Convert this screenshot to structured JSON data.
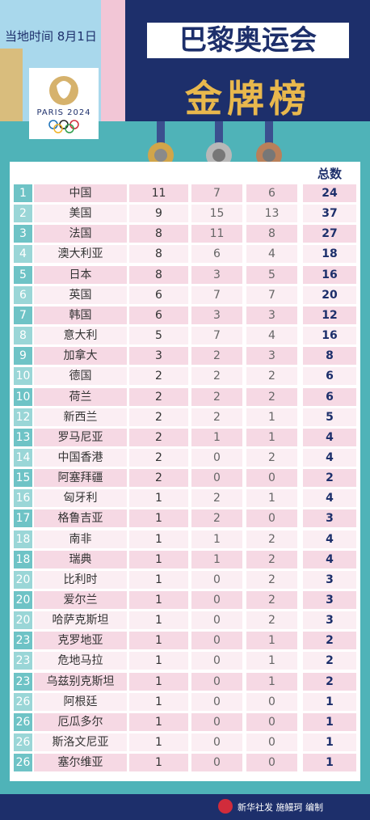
{
  "header": {
    "date": "当地时间 8月1日",
    "title": "巴黎奥运会",
    "subtitle": "金牌榜",
    "logo_text": "PARIS 2024"
  },
  "table": {
    "total_header": "总数",
    "rows": [
      [
        1,
        "中国",
        11,
        7,
        6,
        24
      ],
      [
        2,
        "美国",
        9,
        15,
        13,
        37
      ],
      [
        3,
        "法国",
        8,
        11,
        8,
        27
      ],
      [
        4,
        "澳大利亚",
        8,
        6,
        4,
        18
      ],
      [
        5,
        "日本",
        8,
        3,
        5,
        16
      ],
      [
        6,
        "英国",
        6,
        7,
        7,
        20
      ],
      [
        7,
        "韩国",
        6,
        3,
        3,
        12
      ],
      [
        8,
        "意大利",
        5,
        7,
        4,
        16
      ],
      [
        9,
        "加拿大",
        3,
        2,
        3,
        8
      ],
      [
        10,
        "德国",
        2,
        2,
        2,
        6
      ],
      [
        10,
        "荷兰",
        2,
        2,
        2,
        6
      ],
      [
        12,
        "新西兰",
        2,
        2,
        1,
        5
      ],
      [
        13,
        "罗马尼亚",
        2,
        1,
        1,
        4
      ],
      [
        14,
        "中国香港",
        2,
        0,
        2,
        4
      ],
      [
        15,
        "阿塞拜疆",
        2,
        0,
        0,
        2
      ],
      [
        16,
        "匈牙利",
        1,
        2,
        1,
        4
      ],
      [
        17,
        "格鲁吉亚",
        1,
        2,
        0,
        3
      ],
      [
        18,
        "南非",
        1,
        1,
        2,
        4
      ],
      [
        18,
        "瑞典",
        1,
        1,
        2,
        4
      ],
      [
        20,
        "比利时",
        1,
        0,
        2,
        3
      ],
      [
        20,
        "爱尔兰",
        1,
        0,
        2,
        3
      ],
      [
        20,
        "哈萨克斯坦",
        1,
        0,
        2,
        3
      ],
      [
        23,
        "克罗地亚",
        1,
        0,
        1,
        2
      ],
      [
        23,
        "危地马拉",
        1,
        0,
        1,
        2
      ],
      [
        23,
        "乌兹别克斯坦",
        1,
        0,
        1,
        2
      ],
      [
        26,
        "阿根廷",
        1,
        0,
        0,
        1
      ],
      [
        26,
        "厄瓜多尔",
        1,
        0,
        0,
        1
      ],
      [
        26,
        "斯洛文尼亚",
        1,
        0,
        0,
        1
      ],
      [
        26,
        "塞尔维亚",
        1,
        0,
        0,
        1
      ]
    ]
  },
  "footer": {
    "credit": "新华社发 施鳗珂 编制"
  }
}
